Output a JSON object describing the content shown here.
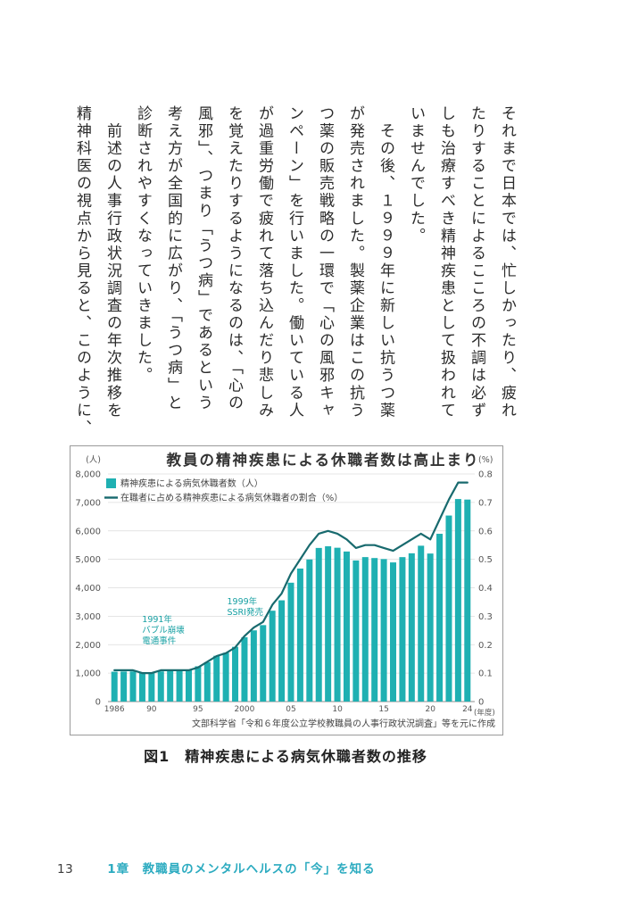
{
  "page": {
    "body_paragraphs": {
      "p1": "それまで日本では、忙しかったり、疲れ\nたりすることによるこころの不調は必ず\nしも治療すべき精神疾患として扱われて\nいませんでした。",
      "p2": "　その後、１９９９年に新しい抗うつ薬\nが発売されました。製薬企業はこの抗う\nつ薬の販売戦略の一環で「心の風邪キャ\nンペーン」を行いました。働いている人\nが過重労働で疲れて落ち込んだり悲しみ\nを覚えたりするようになるのは、「心の\n風邪」、つまり「うつ病」であるという\n考え方が全国的に広がり、「うつ病」と\n診断されやすくなっていきました。",
      "p3": "　前述の人事行政状況調査の年次推移を\n精神科医の視点から見ると、このように、"
    },
    "figure_caption": "図1　精神疾患による病気休職者数の推移",
    "footer": {
      "page_number": "13",
      "chapter": "1章　教職員のメンタルヘルスの「今」を知る",
      "chapter_color": "#2cabc0"
    }
  },
  "chart_data": {
    "type": "bar+line",
    "title": "教員の精神疾患による休職者数は高止まり",
    "grid": true,
    "legend_position": "top-left",
    "years": [
      1986,
      1987,
      1988,
      1989,
      1990,
      1991,
      1992,
      1993,
      1994,
      1995,
      1996,
      1997,
      1998,
      1999,
      2000,
      2001,
      2002,
      2003,
      2004,
      2005,
      2006,
      2007,
      2008,
      2009,
      2010,
      2011,
      2012,
      2013,
      2014,
      2015,
      2016,
      2017,
      2018,
      2019,
      2020,
      2021,
      2022,
      2023,
      2024
    ],
    "series": [
      {
        "name": "精神疾患による病気休職者数（人）",
        "type": "bar",
        "axis": "left",
        "color": "#1fb0b2",
        "values": [
          1050,
          1056,
          1060,
          1010,
          1017,
          1060,
          1111,
          1113,
          1116,
          1240,
          1385,
          1609,
          1715,
          1924,
          2262,
          2503,
          2687,
          3194,
          3559,
          4178,
          4675,
          4995,
          5400,
          5458,
          5407,
          5274,
          4960,
          5078,
          5045,
          5009,
          4891,
          5077,
          5212,
          5478,
          5203,
          5897,
          6539,
          7119,
          7100
        ]
      },
      {
        "name": "在職者に占める精神疾患による病気休職者の割合（%）",
        "type": "line",
        "axis": "right",
        "color": "#186a6e",
        "values": [
          0.11,
          0.11,
          0.11,
          0.1,
          0.1,
          0.11,
          0.11,
          0.11,
          0.11,
          0.12,
          0.14,
          0.16,
          0.17,
          0.19,
          0.23,
          0.26,
          0.28,
          0.34,
          0.38,
          0.45,
          0.5,
          0.55,
          0.59,
          0.6,
          0.59,
          0.57,
          0.54,
          0.55,
          0.55,
          0.54,
          0.53,
          0.55,
          0.57,
          0.59,
          0.57,
          0.64,
          0.71,
          0.77,
          0.77
        ]
      }
    ],
    "left_axis": {
      "unit": "(人)",
      "max": 8000,
      "ticks": [
        "8,000",
        "7,000",
        "6,000",
        "5,000",
        "4,000",
        "3,000",
        "2,000",
        "1,000",
        "0"
      ]
    },
    "right_axis": {
      "unit": "(%)",
      "max": 0.8,
      "ticks": [
        "0.8",
        "0.7",
        "0.6",
        "0.5",
        "0.4",
        "0.3",
        "0.2",
        "0.1",
        "0"
      ]
    },
    "x_axis": {
      "unit": "(年度)",
      "tick_indices": [
        0,
        4,
        9,
        14,
        19,
        24,
        29,
        34,
        38
      ],
      "tick_labels": [
        "1986",
        "90",
        "95",
        "2000",
        "05",
        "10",
        "15",
        "20",
        "24"
      ]
    },
    "annotations": [
      {
        "year": 1991,
        "text": [
          "1991年",
          "バブル崩壊",
          "電通事件"
        ]
      },
      {
        "year": 1999,
        "text": [
          "1999年",
          "SSRI発売"
        ]
      }
    ],
    "annotation_color": "#17a0a3",
    "source": "文部科学省「令和６年度公立学校教職員の人事行政状況調査」等を元に作成"
  }
}
